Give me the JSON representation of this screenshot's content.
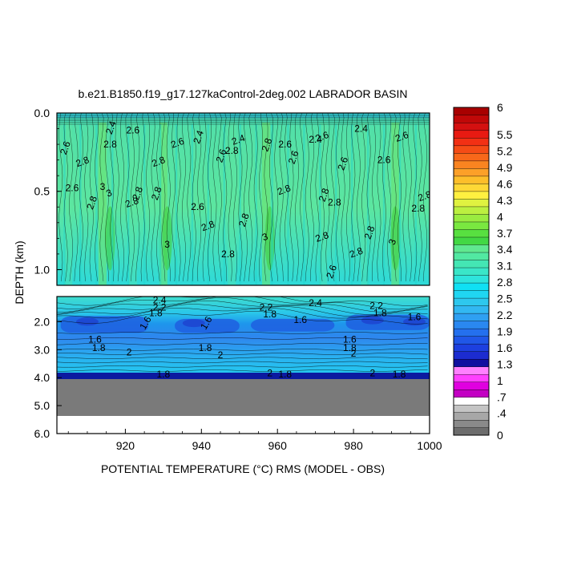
{
  "chart_data": {
    "type": "heatmap",
    "title": "b.e21.B1850.f19_g17.127kaControl-2deg.002 LABRADOR BASIN",
    "xlabel": "POTENTIAL TEMPERATURE (°C) RMS (MODEL - OBS)",
    "ylabel": "DEPTH (km)",
    "xlim": [
      902,
      1000
    ],
    "x_ticks": [
      "920",
      "940",
      "960",
      "980",
      "1000"
    ],
    "x_tick_values": [
      920,
      940,
      960,
      980,
      1000
    ],
    "upper_panel": {
      "ylim": [
        0.0,
        1.1
      ],
      "y_ticks": [
        "0.0",
        "0.5",
        "1.0"
      ],
      "y_tick_values": [
        0.0,
        0.5,
        1.0
      ]
    },
    "lower_panel": {
      "ylim": [
        1.1,
        6.0
      ],
      "y_ticks": [
        "2.0",
        "3.0",
        "4.0",
        "5.0",
        "6.0"
      ],
      "y_tick_values": [
        2.0,
        3.0,
        4.0,
        5.0,
        6.0
      ]
    },
    "contour_labels_upper": [
      {
        "text": "2.6",
        "x": 905,
        "y": 0.23
      },
      {
        "text": "2.6",
        "x": 906,
        "y": 0.5
      },
      {
        "text": "2.8",
        "x": 909,
        "y": 0.33
      },
      {
        "text": "2.8",
        "x": 912,
        "y": 0.58
      },
      {
        "text": "3",
        "x": 914,
        "y": 0.49
      },
      {
        "text": "3",
        "x": 916,
        "y": 0.53
      },
      {
        "text": "2.4",
        "x": 917,
        "y": 0.1
      },
      {
        "text": "2.8",
        "x": 916,
        "y": 0.22
      },
      {
        "text": "2.8",
        "x": 922,
        "y": 0.59
      },
      {
        "text": "2.8",
        "x": 924,
        "y": 0.52
      },
      {
        "text": "2.6",
        "x": 922,
        "y": 0.13
      },
      {
        "text": "2.8",
        "x": 929,
        "y": 0.33
      },
      {
        "text": "2.8",
        "x": 929,
        "y": 0.52
      },
      {
        "text": "3",
        "x": 931,
        "y": 0.86
      },
      {
        "text": "2.6",
        "x": 934,
        "y": 0.21
      },
      {
        "text": "2.4",
        "x": 940,
        "y": 0.16
      },
      {
        "text": "2.6",
        "x": 939,
        "y": 0.62
      },
      {
        "text": "2.8",
        "x": 942,
        "y": 0.74
      },
      {
        "text": "2.6",
        "x": 946,
        "y": 0.28
      },
      {
        "text": "2.8",
        "x": 948,
        "y": 0.26
      },
      {
        "text": "2.4",
        "x": 950,
        "y": 0.19
      },
      {
        "text": "2.8",
        "x": 952,
        "y": 0.69
      },
      {
        "text": "2.8",
        "x": 947,
        "y": 0.92
      },
      {
        "text": "3",
        "x": 957,
        "y": 0.81
      },
      {
        "text": "2.8",
        "x": 958,
        "y": 0.21
      },
      {
        "text": "2.6",
        "x": 962,
        "y": 0.22
      },
      {
        "text": "2.8",
        "x": 962,
        "y": 0.51
      },
      {
        "text": "2.6",
        "x": 965,
        "y": 0.29
      },
      {
        "text": "2.4",
        "x": 970,
        "y": 0.19
      },
      {
        "text": "2.6",
        "x": 972,
        "y": 0.17
      },
      {
        "text": "2.8",
        "x": 973,
        "y": 0.53
      },
      {
        "text": "2.8",
        "x": 975,
        "y": 0.59
      },
      {
        "text": "2.8",
        "x": 972,
        "y": 0.81
      },
      {
        "text": "2.6",
        "x": 978,
        "y": 0.33
      },
      {
        "text": "2.4",
        "x": 982,
        "y": 0.12
      },
      {
        "text": "2.8",
        "x": 981,
        "y": 0.91
      },
      {
        "text": "2.8",
        "x": 985,
        "y": 0.77
      },
      {
        "text": "2.6",
        "x": 988,
        "y": 0.32
      },
      {
        "text": "2.6",
        "x": 993,
        "y": 0.17
      },
      {
        "text": "3",
        "x": 991,
        "y": 0.83
      },
      {
        "text": "2.8",
        "x": 997,
        "y": 0.63
      },
      {
        "text": "2.8",
        "x": 999,
        "y": 0.55
      },
      {
        "text": "2.6",
        "x": 975,
        "y": 1.02
      }
    ],
    "contour_labels_lower": [
      {
        "text": "2.4",
        "x": 929,
        "y": 1.35
      },
      {
        "text": "2.2",
        "x": 929,
        "y": 1.6
      },
      {
        "text": "1.8",
        "x": 928,
        "y": 1.8
      },
      {
        "text": "1.6",
        "x": 926,
        "y": 2.1
      },
      {
        "text": "1.6",
        "x": 942,
        "y": 2.1
      },
      {
        "text": "2.2",
        "x": 957,
        "y": 1.6
      },
      {
        "text": "1.8",
        "x": 958,
        "y": 1.85
      },
      {
        "text": "1.6",
        "x": 966,
        "y": 2.05
      },
      {
        "text": "2.4",
        "x": 970,
        "y": 1.45
      },
      {
        "text": "2.2",
        "x": 986,
        "y": 1.55
      },
      {
        "text": "1.8",
        "x": 987,
        "y": 1.8
      },
      {
        "text": "1.6",
        "x": 996,
        "y": 1.95
      },
      {
        "text": "1.6",
        "x": 912,
        "y": 2.75
      },
      {
        "text": "1.8",
        "x": 913,
        "y": 3.05
      },
      {
        "text": "2",
        "x": 921,
        "y": 3.2
      },
      {
        "text": "1.8",
        "x": 941,
        "y": 3.05
      },
      {
        "text": "2",
        "x": 945,
        "y": 3.3
      },
      {
        "text": "1.6",
        "x": 979,
        "y": 2.75
      },
      {
        "text": "1.8",
        "x": 979,
        "y": 3.05
      },
      {
        "text": "2",
        "x": 980,
        "y": 3.25
      },
      {
        "text": "1.8",
        "x": 930,
        "y": 4.0
      },
      {
        "text": "2",
        "x": 958,
        "y": 3.95
      },
      {
        "text": "1.8",
        "x": 962,
        "y": 4.0
      },
      {
        "text": "2",
        "x": 985,
        "y": 3.95
      },
      {
        "text": "1.8",
        "x": 992,
        "y": 4.0
      }
    ],
    "colorbar": {
      "labels": [
        "6",
        "5.5",
        "5.2",
        "4.9",
        "4.6",
        "4.3",
        "4",
        "3.7",
        "3.4",
        "3.1",
        "2.8",
        "2.5",
        "2.2",
        "1.9",
        "1.6",
        "1.3",
        "1",
        ".7",
        ".4",
        "0"
      ],
      "label_values": [
        6,
        5.5,
        5.2,
        4.9,
        4.6,
        4.3,
        4,
        3.7,
        3.4,
        3.1,
        2.8,
        2.5,
        2.2,
        1.9,
        1.6,
        1.3,
        1.0,
        0.7,
        0.4,
        0
      ],
      "min": 0,
      "max": 6
    },
    "colors": {
      "upper_field": "#2ee0c6",
      "warm_field": "#4ee88a",
      "hot_spot": "#41d64a",
      "blue_core": "#2470e6",
      "deep_blue": "#1c3fd0",
      "land_gray": "#7a7a7a",
      "missing_white": "#ffffff"
    },
    "grid": false
  }
}
